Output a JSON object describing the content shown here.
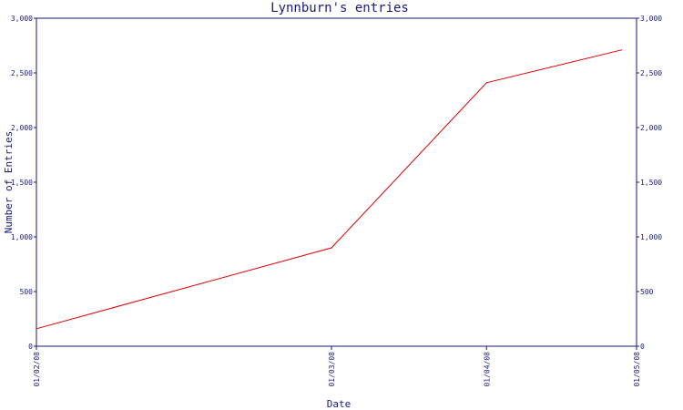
{
  "chart_data": {
    "type": "line",
    "title": "Lynnburn's entries",
    "xlabel": "Date",
    "ylabel": "Number of Entries",
    "x": [
      "01/02/08",
      "01/03/08",
      "01/04/08",
      "01/05/08"
    ],
    "series": [
      {
        "points": [
          {
            "x": "2008-01-02",
            "y": 160
          },
          {
            "x": "2008-03-01",
            "y": 900
          },
          {
            "x": "2008-04-01",
            "y": 2410
          },
          {
            "x": "2008-04-28",
            "y": 2710
          }
        ],
        "color": "#e00000"
      }
    ],
    "ylim": [
      0,
      3000
    ],
    "y_ticks": [
      "0",
      "500",
      "1,000",
      "1,500",
      "2,000",
      "2,500",
      "3,000"
    ],
    "y_tick_values": [
      0,
      500,
      1000,
      1500,
      2000,
      2500,
      3000
    ],
    "x_tick_dates": [
      "2008-01-02",
      "2008-03-01",
      "2008-04-01",
      "2008-05-01"
    ],
    "grid": false,
    "y_axis_both_sides": true,
    "axis_color": "#1a1a80"
  }
}
